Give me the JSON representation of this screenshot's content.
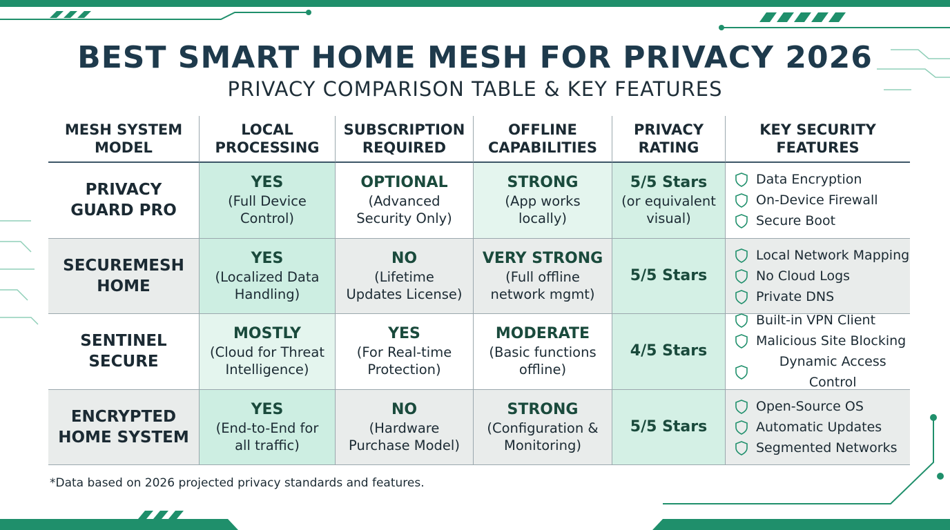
{
  "header": {
    "title": "BEST SMART HOME MESH FOR PRIVACY 2026",
    "subtitle": "PRIVACY COMPARISON TABLE & KEY FEATURES"
  },
  "table": {
    "columns": [
      [
        "MESH SYSTEM",
        "MODEL"
      ],
      [
        "LOCAL",
        "PROCESSING"
      ],
      [
        "SUBSCRIPTION",
        "REQUIRED"
      ],
      [
        "OFFLINE",
        "CAPABILITIES"
      ],
      [
        "PRIVACY",
        "RATING"
      ],
      [
        "KEY SECURITY",
        "FEATURES"
      ]
    ],
    "rows": [
      {
        "model": [
          "PRIVACY",
          "GUARD PRO"
        ],
        "local": {
          "main": "YES",
          "detail": [
            "(Full Device",
            "Control)"
          ]
        },
        "subscription": {
          "main": "OPTIONAL",
          "detail": [
            "(Advanced",
            "Security Only)"
          ]
        },
        "offline": {
          "main": "STRONG",
          "detail": [
            "(App works",
            "locally)"
          ]
        },
        "rating": {
          "main": "5/5 Stars",
          "detail": [
            "(or equivalent",
            "visual)"
          ]
        },
        "features": [
          "Data Encryption",
          "On-Device Firewall",
          "Secure Boot"
        ]
      },
      {
        "model": [
          "SECUREMESH",
          "HOME"
        ],
        "local": {
          "main": "YES",
          "detail": [
            "(Localized Data",
            "Handling)"
          ]
        },
        "subscription": {
          "main": "NO",
          "detail": [
            "(Lifetime",
            "Updates License)"
          ]
        },
        "offline": {
          "main": "VERY STRONG",
          "detail": [
            "(Full offline",
            "network mgmt)"
          ]
        },
        "rating": {
          "main": "5/5 Stars",
          "detail": []
        },
        "features": [
          "Local Network Mapping",
          "No Cloud Logs",
          "Private DNS"
        ]
      },
      {
        "model": [
          "SENTINEL",
          "SECURE"
        ],
        "local": {
          "main": "MOSTLY",
          "detail": [
            "(Cloud for Threat",
            "Intelligence)"
          ]
        },
        "subscription": {
          "main": "YES",
          "detail": [
            "(For Real-time",
            "Protection)"
          ]
        },
        "offline": {
          "main": "MODERATE",
          "detail": [
            "(Basic functions",
            "offline)"
          ]
        },
        "rating": {
          "main": "4/5 Stars",
          "detail": []
        },
        "features": [
          "Built-in VPN Client",
          "Malicious Site Blocking",
          "Dynamic Access Control"
        ]
      },
      {
        "model": [
          "ENCRYPTED",
          "HOME SYSTEM"
        ],
        "local": {
          "main": "YES",
          "detail": [
            "(End-to-End for",
            "all traffic)"
          ]
        },
        "subscription": {
          "main": "NO",
          "detail": [
            "(Hardware",
            "Purchase Model)"
          ]
        },
        "offline": {
          "main": "STRONG",
          "detail": [
            "(Configuration &",
            "Monitoring)"
          ]
        },
        "rating": {
          "main": "5/5 Stars",
          "detail": []
        },
        "features": [
          "Open-Source OS",
          "Automatic Updates",
          "Segmented Networks"
        ]
      }
    ]
  },
  "footnote": "*Data based on 2026 projected privacy standards and features."
}
